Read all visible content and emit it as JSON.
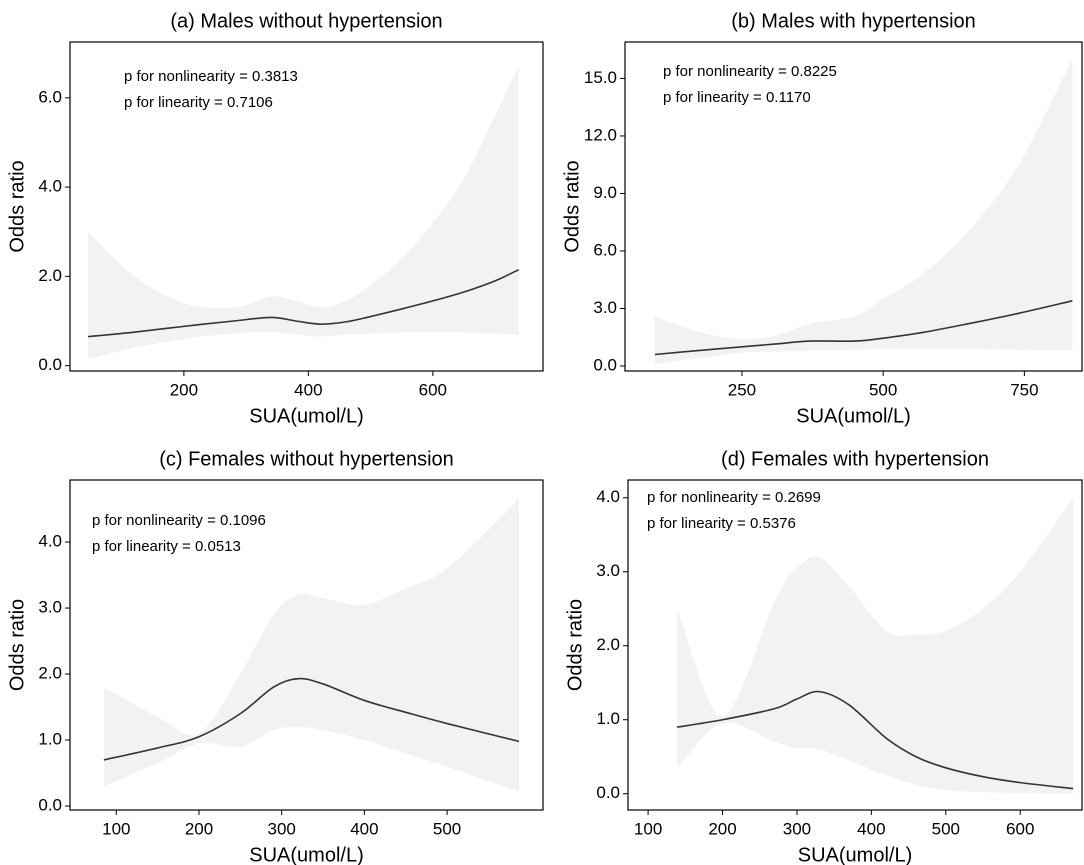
{
  "chart_data": [
    {
      "type": "line",
      "title": "(a) Males without hypertension",
      "xlabel": "SUA(umol/L)",
      "ylabel": "Odds ratio",
      "annotations": [
        "p for nonlinearity = 0.3813",
        "p for linearity = 0.7106"
      ],
      "x": [
        46,
        120,
        200,
        280,
        340,
        380,
        420,
        460,
        500,
        550,
        600,
        650,
        700,
        738
      ],
      "values": [
        0.65,
        0.75,
        0.88,
        1.0,
        1.08,
        1.0,
        0.93,
        0.98,
        1.1,
        1.27,
        1.45,
        1.65,
        1.9,
        2.15
      ],
      "ci_lower": [
        0.15,
        0.4,
        0.6,
        0.72,
        0.75,
        0.7,
        0.65,
        0.7,
        0.72,
        0.74,
        0.75,
        0.74,
        0.72,
        0.7
      ],
      "ci_upper": [
        3.0,
        2.0,
        1.4,
        1.3,
        1.55,
        1.45,
        1.3,
        1.45,
        1.8,
        2.4,
        3.2,
        4.2,
        5.6,
        6.7
      ],
      "color": "#333333",
      "band_color": "#f2f2f2",
      "xlim": [
        17,
        777
      ],
      "ylim": [
        -0.12,
        7.25
      ],
      "xticks": [
        200,
        400,
        600
      ],
      "yticks": [
        {
          "value": 0,
          "label": "0.0"
        },
        {
          "value": 2,
          "label": "2.0"
        },
        {
          "value": 4,
          "label": "4.0"
        },
        {
          "value": 6,
          "label": "6.0"
        }
      ]
    },
    {
      "type": "line",
      "title": "(b) Males with hypertension",
      "xlabel": "SUA(umol/L)",
      "ylabel": "Odds ratio",
      "annotations": [
        "p for nonlinearity = 0.8225",
        "p for linearity = 0.1170"
      ],
      "x": [
        96,
        170,
        250,
        310,
        370,
        450,
        500,
        570,
        650,
        740,
        835
      ],
      "values": [
        0.6,
        0.8,
        1.0,
        1.15,
        1.3,
        1.3,
        1.45,
        1.75,
        2.2,
        2.75,
        3.4
      ],
      "ci_lower": [
        0.1,
        0.4,
        0.7,
        0.75,
        0.8,
        0.85,
        0.9,
        0.9,
        0.9,
        0.85,
        0.8
      ],
      "ci_upper": [
        2.6,
        1.8,
        1.4,
        1.6,
        2.2,
        2.6,
        3.5,
        4.8,
        7.0,
        10.5,
        16.0
      ],
      "color": "#333333",
      "band_color": "#f2f2f2",
      "xlim": [
        43,
        852
      ],
      "ylim": [
        -0.26,
        16.9
      ],
      "xticks": [
        250,
        500,
        750
      ],
      "yticks": [
        {
          "value": 0,
          "label": "0.0"
        },
        {
          "value": 3,
          "label": "3.0"
        },
        {
          "value": 6,
          "label": "6.0"
        },
        {
          "value": 9,
          "label": "9.0"
        },
        {
          "value": 12,
          "label": "12.0"
        },
        {
          "value": 15,
          "label": "15.0"
        }
      ]
    },
    {
      "type": "line",
      "title": "(c) Females without hypertension",
      "xlabel": "SUA(umol/L)",
      "ylabel": "Odds ratio",
      "annotations": [
        "p for nonlinearity = 0.1096",
        "p for linearity = 0.0513"
      ],
      "x": [
        85,
        150,
        200,
        250,
        290,
        320,
        350,
        400,
        450,
        500,
        587
      ],
      "values": [
        0.7,
        0.88,
        1.05,
        1.4,
        1.8,
        1.93,
        1.85,
        1.6,
        1.42,
        1.25,
        0.98
      ],
      "ci_lower": [
        0.3,
        0.65,
        0.95,
        0.9,
        1.15,
        1.2,
        1.15,
        1.0,
        0.8,
        0.6,
        0.22
      ],
      "ci_upper": [
        1.8,
        1.35,
        1.1,
        2.0,
        2.9,
        3.2,
        3.15,
        3.05,
        3.3,
        3.6,
        4.65
      ],
      "color": "#333333",
      "band_color": "#f2f2f2",
      "xlim": [
        44,
        616
      ],
      "ylim": [
        -0.06,
        4.94
      ],
      "xticks": [
        100,
        200,
        300,
        400,
        500
      ],
      "yticks": [
        {
          "value": 0,
          "label": "0.0"
        },
        {
          "value": 1,
          "label": "1.0"
        },
        {
          "value": 2,
          "label": "2.0"
        },
        {
          "value": 3,
          "label": "3.0"
        },
        {
          "value": 4,
          "label": "4.0"
        }
      ]
    },
    {
      "type": "line",
      "title": "(d) Females with hypertension",
      "xlabel": "SUA(umol/L)",
      "ylabel": "Odds ratio",
      "annotations": [
        "p for nonlinearity = 0.2699",
        "p for linearity = 0.5376"
      ],
      "x": [
        139,
        200,
        270,
        300,
        330,
        370,
        420,
        460,
        500,
        550,
        600,
        671
      ],
      "values": [
        0.9,
        1.0,
        1.15,
        1.28,
        1.38,
        1.2,
        0.75,
        0.5,
        0.35,
        0.23,
        0.15,
        0.07
      ],
      "ci_lower": [
        0.35,
        0.95,
        0.7,
        0.62,
        0.6,
        0.45,
        0.25,
        0.12,
        0.05,
        0.02,
        0.01,
        0.0
      ],
      "ci_upper": [
        2.5,
        1.05,
        2.6,
        3.05,
        3.2,
        2.8,
        2.2,
        2.15,
        2.2,
        2.5,
        3.0,
        4.0
      ],
      "color": "#333333",
      "band_color": "#f2f2f2",
      "xlim": [
        73,
        683
      ],
      "ylim": [
        -0.22,
        4.24
      ],
      "xticks": [
        100,
        200,
        300,
        400,
        500,
        600
      ],
      "yticks": [
        {
          "value": 0,
          "label": "0.0"
        },
        {
          "value": 1,
          "label": "1.0"
        },
        {
          "value": 2,
          "label": "2.0"
        },
        {
          "value": 3,
          "label": "3.0"
        },
        {
          "value": 4,
          "label": "4.0"
        }
      ]
    }
  ]
}
